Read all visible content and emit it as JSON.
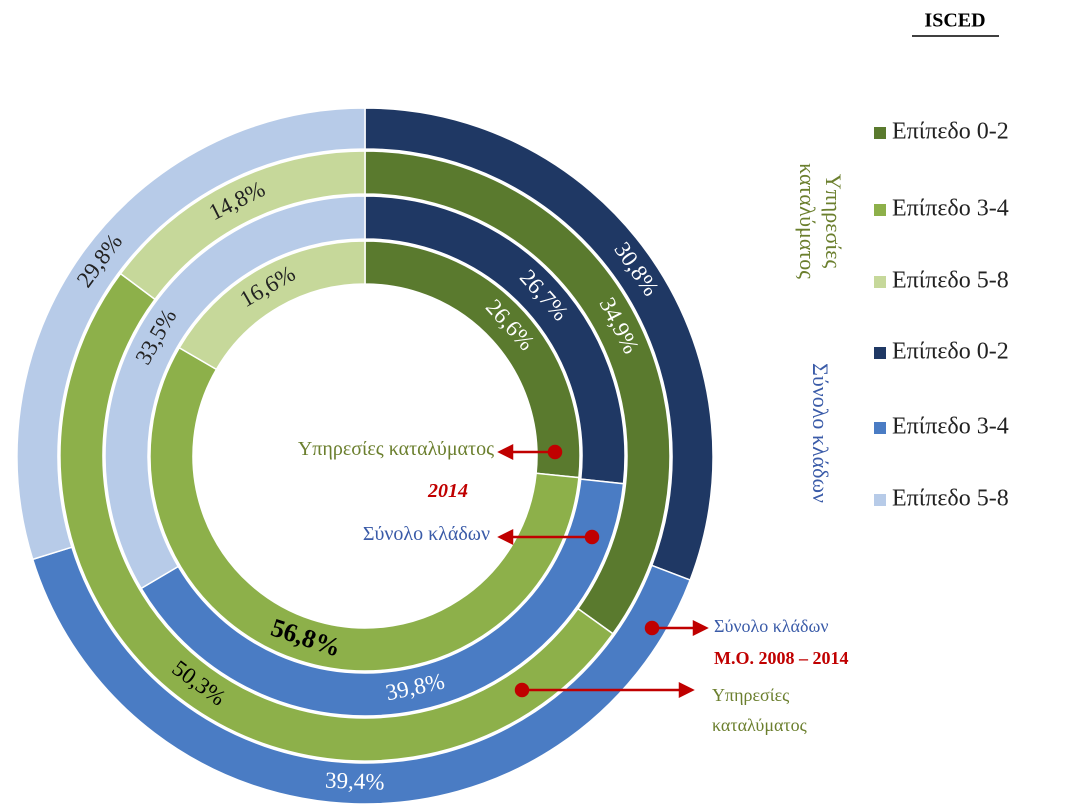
{
  "chart_data": {
    "type": "nested-donut",
    "legend_title": "ISCED",
    "legend_groups": [
      {
        "label": "Υπηρεσίες καταλύματος",
        "color": "#6b7f2e",
        "entries": [
          "Επίπεδο 0-2",
          "Επίπεδο 3-4",
          "Επίπεδο 5-8"
        ],
        "colors": [
          "#5a7a2e",
          "#8db04a",
          "#c6d89a"
        ]
      },
      {
        "label": "Σύνολο κλάδων",
        "color": "#3a5ba8",
        "entries": [
          "Επίπεδο 0-2",
          "Επίπεδο 3-4",
          "Επίπεδο 5-8"
        ],
        "colors": [
          "#1f3864",
          "#4a7cc4",
          "#b7cbe8"
        ]
      }
    ],
    "rings": [
      {
        "values": [
          26.6,
          56.8,
          16.6
        ],
        "value_labels": [
          "26,6%",
          "56,8%",
          "16,6%"
        ],
        "colors": [
          "#5a7a2e",
          "#8db04a",
          "#c6d89a"
        ]
      },
      {
        "values": [
          26.7,
          39.8,
          33.5
        ],
        "value_labels": [
          "26,7%",
          "39,8%",
          "33,5%"
        ],
        "colors": [
          "#1f3864",
          "#4a7cc4",
          "#b7cbe8"
        ]
      },
      {
        "values": [
          34.9,
          50.3,
          14.8
        ],
        "value_labels": [
          "34,9%",
          "50,3%",
          "14,8%"
        ],
        "colors": [
          "#5a7a2e",
          "#8db04a",
          "#c6d89a"
        ]
      },
      {
        "values": [
          30.8,
          39.4,
          29.8
        ],
        "value_labels": [
          "30,8%",
          "39,4%",
          "29,8%"
        ],
        "colors": [
          "#1f3864",
          "#4a7cc4",
          "#b7cbe8"
        ]
      }
    ],
    "annotations": [
      "Υπηρεσίες καταλύματος",
      "2014",
      "Σύνολο κλάδων",
      "Σύνολο κλάδων",
      "Μ.Ο. 2008 – 2014",
      "Υπηρεσίες καταλύματος"
    ]
  }
}
